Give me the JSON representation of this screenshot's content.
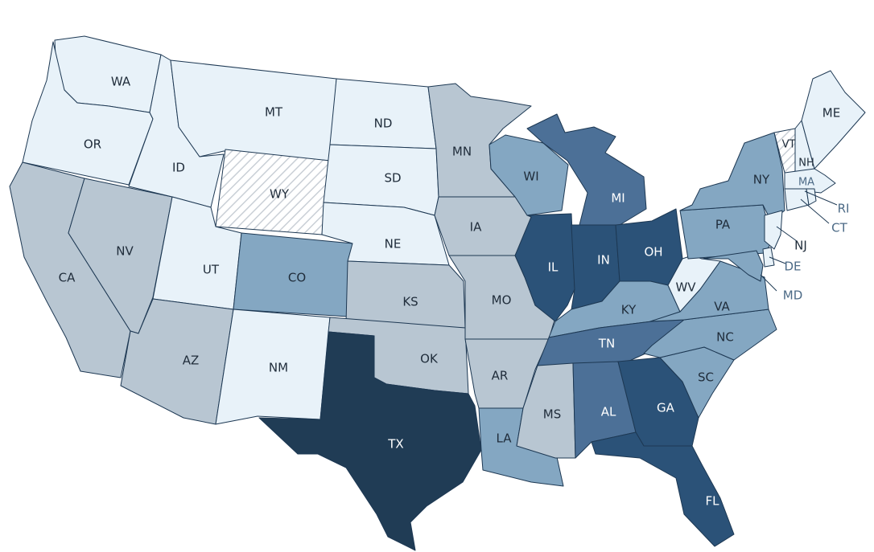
{
  "colors": {
    "t1": "#e8f2f9",
    "t2": "#b8c6d2",
    "t3": "#84a7c2",
    "t4": "#4c7097",
    "t5": "#2b5278",
    "t6": "#203c55",
    "nodata": "hatch",
    "border": "#1d3853",
    "dark_label": "#1f2c3a",
    "light_label": "#ffffff",
    "callout_label": "#4c6a86"
  },
  "states": {
    "WA": {
      "label": "WA",
      "tier": "t1"
    },
    "OR": {
      "label": "OR",
      "tier": "t1"
    },
    "CA": {
      "label": "CA",
      "tier": "t2"
    },
    "NV": {
      "label": "NV",
      "tier": "t2"
    },
    "ID": {
      "label": "ID",
      "tier": "t1"
    },
    "MT": {
      "label": "MT",
      "tier": "t1"
    },
    "WY": {
      "label": "WY",
      "tier": "nodata"
    },
    "UT": {
      "label": "UT",
      "tier": "t1"
    },
    "AZ": {
      "label": "AZ",
      "tier": "t2"
    },
    "CO": {
      "label": "CO",
      "tier": "t3"
    },
    "NM": {
      "label": "NM",
      "tier": "t1"
    },
    "ND": {
      "label": "ND",
      "tier": "t1"
    },
    "SD": {
      "label": "SD",
      "tier": "t1"
    },
    "NE": {
      "label": "NE",
      "tier": "t1"
    },
    "KS": {
      "label": "KS",
      "tier": "t2"
    },
    "OK": {
      "label": "OK",
      "tier": "t2"
    },
    "TX": {
      "label": "TX",
      "tier": "t6"
    },
    "MN": {
      "label": "MN",
      "tier": "t2"
    },
    "IA": {
      "label": "IA",
      "tier": "t2"
    },
    "MO": {
      "label": "MO",
      "tier": "t2"
    },
    "AR": {
      "label": "AR",
      "tier": "t2"
    },
    "LA": {
      "label": "LA",
      "tier": "t3"
    },
    "WI": {
      "label": "WI",
      "tier": "t3"
    },
    "IL": {
      "label": "IL",
      "tier": "t5"
    },
    "MI": {
      "label": "MI",
      "tier": "t4"
    },
    "IN": {
      "label": "IN",
      "tier": "t5"
    },
    "OH": {
      "label": "OH",
      "tier": "t5"
    },
    "KY": {
      "label": "KY",
      "tier": "t3"
    },
    "TN": {
      "label": "TN",
      "tier": "t4"
    },
    "MS": {
      "label": "MS",
      "tier": "t2"
    },
    "AL": {
      "label": "AL",
      "tier": "t4"
    },
    "GA": {
      "label": "GA",
      "tier": "t5"
    },
    "FL": {
      "label": "FL",
      "tier": "t5"
    },
    "SC": {
      "label": "SC",
      "tier": "t3"
    },
    "NC": {
      "label": "NC",
      "tier": "t3"
    },
    "VA": {
      "label": "VA",
      "tier": "t3"
    },
    "WV": {
      "label": "WV",
      "tier": "t1"
    },
    "PA": {
      "label": "PA",
      "tier": "t3"
    },
    "NY": {
      "label": "NY",
      "tier": "t3"
    },
    "VT": {
      "label": "VT",
      "tier": "nodata"
    },
    "NH": {
      "label": "NH",
      "tier": "t1"
    },
    "ME": {
      "label": "ME",
      "tier": "t1"
    },
    "MA": {
      "label": "MA",
      "tier": "t1"
    },
    "RI": {
      "label": "RI",
      "tier": "t1"
    },
    "CT": {
      "label": "CT",
      "tier": "t1"
    },
    "NJ": {
      "label": "NJ",
      "tier": "t1"
    },
    "DE": {
      "label": "DE",
      "tier": "t1"
    },
    "MD": {
      "label": "MD",
      "tier": "t3"
    }
  }
}
